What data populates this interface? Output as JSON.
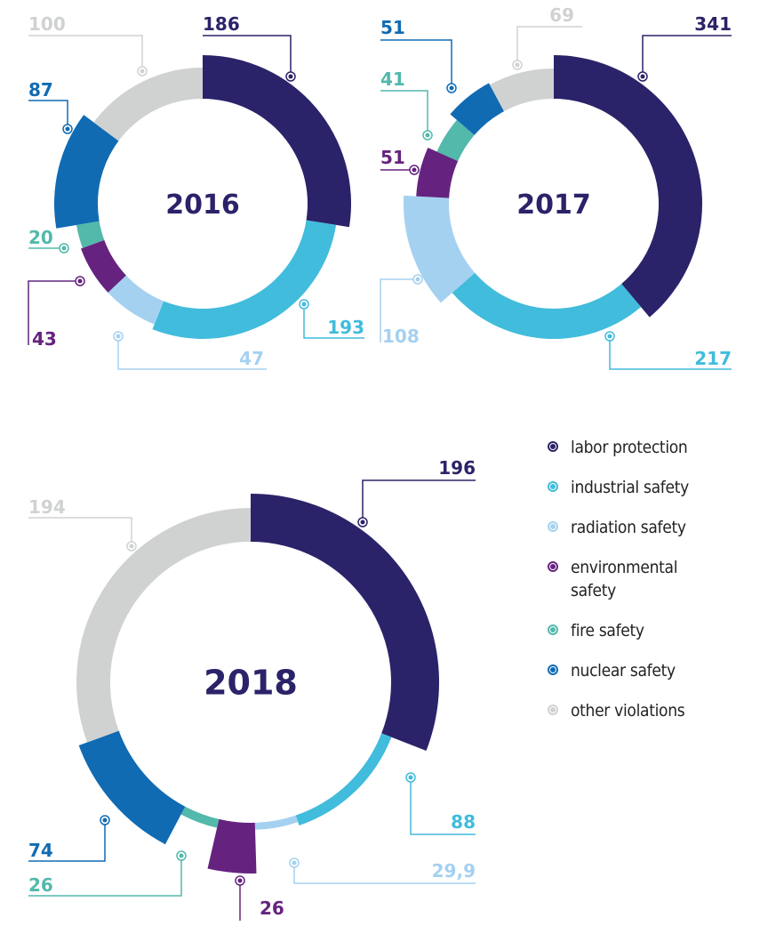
{
  "colors": {
    "labor_protection": "#2b2369",
    "industrial_safety": "#41bcdc",
    "radiation_safety": "#a5d1f0",
    "environmental_safety": "#65237f",
    "fire_safety": "#52b9ab",
    "nuclear_safety": "#106bb3",
    "other_violations": "#d0d2d2"
  },
  "legend": [
    {
      "key": "labor_protection",
      "label": "labor protection"
    },
    {
      "key": "industrial_safety",
      "label": "industrial safety"
    },
    {
      "key": "radiation_safety",
      "label": "radiation safety"
    },
    {
      "key": "environmental_safety",
      "label": "environmental safety"
    },
    {
      "key": "fire_safety",
      "label": "fire safety"
    },
    {
      "key": "nuclear_safety",
      "label": "nuclear safety"
    },
    {
      "key": "other_violations",
      "label": "other violations"
    }
  ],
  "chart_data": [
    {
      "type": "pie",
      "title": "2016",
      "categories": [
        "labor protection",
        "industrial safety",
        "radiation safety",
        "environmental safety",
        "fire safety",
        "nuclear safety",
        "other violations"
      ],
      "values": [
        186,
        193,
        47,
        43,
        20,
        87,
        100
      ],
      "labels": [
        "186",
        "193",
        "47",
        "43",
        "20",
        "87",
        "100"
      ]
    },
    {
      "type": "pie",
      "title": "2017",
      "categories": [
        "labor protection",
        "industrial safety",
        "radiation safety",
        "environmental safety",
        "fire safety",
        "nuclear safety",
        "other violations"
      ],
      "values": [
        341,
        217,
        108,
        51,
        41,
        51,
        69
      ],
      "labels": [
        "341",
        "217",
        "108",
        "51",
        "41",
        "51",
        "69"
      ]
    },
    {
      "type": "pie",
      "title": "2018",
      "categories": [
        "labor protection",
        "industrial safety",
        "radiation safety",
        "environmental safety",
        "fire safety",
        "nuclear safety",
        "other violations"
      ],
      "values": [
        196,
        88,
        29.9,
        26,
        26,
        74,
        194
      ],
      "labels": [
        "196",
        "88",
        "29,9",
        "26",
        "26",
        "74",
        "194"
      ]
    }
  ]
}
